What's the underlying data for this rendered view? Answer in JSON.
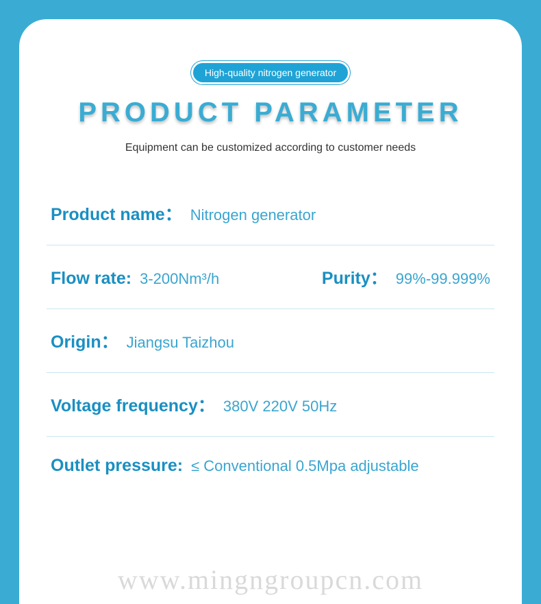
{
  "theme": {
    "page_bg": "#3aacd3",
    "card_bg": "#ffffff",
    "accent": "#1fa3d6",
    "title_color": "#3aacd3",
    "label_color": "#1a8fc2",
    "value_color": "#3aa5cf",
    "text_color": "#333333",
    "divider_color": "#c9e6f0",
    "watermark_color": "rgba(120,120,120,0.28)",
    "title_fontsize": 40,
    "label_fontsize": 25,
    "value_fontsize": 22,
    "subtitle_fontsize": 16,
    "card_radius": 40
  },
  "badge": "High-quality nitrogen generator",
  "title": "PRODUCT PARAMETER",
  "subtitle": "Equipment can be customized according to customer needs",
  "rows": [
    {
      "items": [
        {
          "label": "Product name：",
          "value": "Nitrogen generator"
        }
      ]
    },
    {
      "items": [
        {
          "label": "Flow rate:",
          "value": "3-200Nm³/h"
        },
        {
          "label": "Purity：",
          "value": "99%-99.999%"
        }
      ]
    },
    {
      "items": [
        {
          "label": "Origin：",
          "value": "Jiangsu Taizhou"
        }
      ]
    },
    {
      "items": [
        {
          "label": "Voltage frequency：",
          "value": "380V 220V 50Hz"
        }
      ]
    },
    {
      "items": [
        {
          "label": "Outlet pressure:",
          "value": "≤ Conventional 0.5Mpa adjustable"
        }
      ]
    }
  ],
  "watermark": "www.mingngroupcn.com"
}
